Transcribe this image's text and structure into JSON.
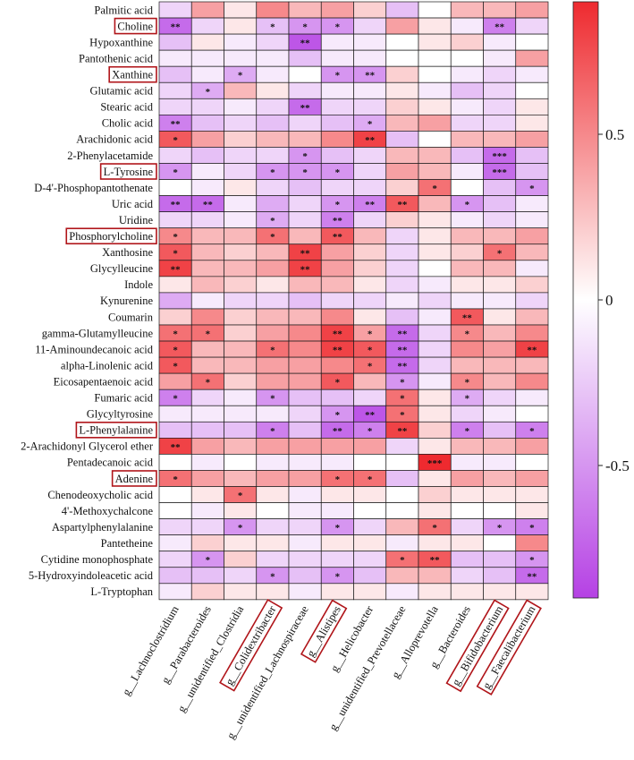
{
  "colors": {
    "negative": "#b541e4",
    "neutral": "#ffffff",
    "positive": "#ee2a2f",
    "highlight_box": "#b0151a"
  },
  "chart_data": {
    "type": "heatmap",
    "title": "",
    "rows": [
      "Palmitic acid",
      "Choline",
      "Hypoxanthine",
      "Pantothenic acid",
      "Xanthine",
      "Glutamic acid",
      "Stearic acid",
      "Cholic acid",
      "Arachidonic acid",
      "2-Phenylacetamide",
      "L-Tyrosine",
      "D-4'-Phosphopantothenate",
      "Uric acid",
      "Uridine",
      "Phosphorylcholine",
      "Xanthosine",
      "Glycylleucine",
      "Indole",
      "Kynurenine",
      "Coumarin",
      "gamma-Glutamylleucine",
      "11-Aminoundecanoic acid",
      "alpha-Linolenic acid",
      "Eicosapentaenoic acid",
      "Fumaric acid",
      "Glycyltyrosine",
      "L-Phenylalanine",
      "2-Arachidonyl Glycerol ether",
      "Pentadecanoic acid",
      "Adenine",
      "Chenodeoxycholic acid",
      "4'-Methoxychalcone",
      "Aspartylphenylalanine",
      "Pantetheine",
      "Cytidine monophosphate",
      "5-Hydroxyindoleacetic acid",
      "L-Tryptophan"
    ],
    "columns": [
      "g__Lachnoclostridium",
      "g__Parabacteroides",
      "g__unidentified_Clostridia",
      "g__Colidextribacter",
      "g__unidentified_Lachnospiraceae",
      "g__Alistipes",
      "g__Helicobacter",
      "g__unidentified_Prevotellaceae",
      "g__Alloprevotella",
      "g__Bacteroides",
      "g__Bifidobacterium",
      "g__Faecalibacterium"
    ],
    "highlighted_rows": [
      "Choline",
      "Xanthine",
      "L-Tyrosine",
      "Phosphorylcholine",
      "L-Phenylalanine",
      "Adenine"
    ],
    "highlighted_columns": [
      "g__Colidextribacter",
      "g__Alistipes",
      "g__Bifidobacterium",
      "g__Faecalibacterium"
    ],
    "values": [
      [
        -0.2,
        0.4,
        0.1,
        0.5,
        0.3,
        0.4,
        0.2,
        -0.3,
        0.0,
        0.3,
        0.3,
        0.4
      ],
      [
        -0.7,
        -0.2,
        0.1,
        -0.3,
        -0.5,
        -0.5,
        -0.2,
        0.4,
        0.1,
        -0.1,
        -0.6,
        -0.2
      ],
      [
        -0.3,
        0.1,
        -0.1,
        -0.2,
        -0.8,
        -0.1,
        -0.1,
        0.0,
        0.1,
        0.2,
        -0.1,
        0.0
      ],
      [
        -0.1,
        -0.1,
        -0.1,
        -0.1,
        -0.3,
        -0.1,
        -0.1,
        0.0,
        0.0,
        0.0,
        -0.1,
        0.4
      ],
      [
        -0.3,
        -0.1,
        -0.4,
        -0.1,
        0.0,
        -0.5,
        -0.5,
        0.2,
        0.0,
        -0.1,
        -0.2,
        -0.1
      ],
      [
        -0.2,
        -0.4,
        0.3,
        0.1,
        -0.2,
        -0.1,
        -0.1,
        0.1,
        -0.1,
        -0.3,
        -0.2,
        0.0
      ],
      [
        -0.2,
        -0.2,
        -0.1,
        -0.2,
        -0.7,
        -0.2,
        -0.2,
        0.2,
        0.1,
        -0.1,
        -0.2,
        0.1
      ],
      [
        -0.6,
        -0.3,
        -0.2,
        -0.3,
        -0.2,
        -0.3,
        -0.4,
        0.3,
        0.4,
        -0.2,
        -0.2,
        0.1
      ],
      [
        0.7,
        0.4,
        0.2,
        0.3,
        0.3,
        0.5,
        0.8,
        -0.3,
        0.0,
        0.3,
        0.3,
        0.4
      ],
      [
        -0.2,
        -0.3,
        -0.2,
        -0.2,
        -0.5,
        -0.3,
        -0.2,
        0.3,
        0.3,
        -0.3,
        -0.7,
        -0.3
      ],
      [
        -0.5,
        -0.1,
        -0.2,
        -0.5,
        -0.5,
        -0.5,
        -0.2,
        0.4,
        0.3,
        -0.1,
        -0.7,
        -0.3
      ],
      [
        0.0,
        -0.1,
        0.1,
        -0.2,
        -0.3,
        -0.2,
        -0.2,
        0.2,
        0.6,
        0.0,
        -0.3,
        -0.5
      ],
      [
        -0.7,
        -0.7,
        -0.1,
        -0.4,
        -0.2,
        -0.5,
        -0.6,
        0.7,
        0.3,
        -0.5,
        -0.3,
        -0.1
      ],
      [
        -0.2,
        -0.2,
        -0.1,
        -0.4,
        -0.2,
        -0.6,
        -0.2,
        0.2,
        0.1,
        -0.1,
        -0.2,
        -0.1
      ],
      [
        0.5,
        0.3,
        0.3,
        0.6,
        0.3,
        0.7,
        0.3,
        -0.2,
        0.1,
        0.3,
        0.3,
        0.4
      ],
      [
        0.7,
        0.3,
        0.2,
        0.3,
        0.8,
        0.4,
        0.2,
        -0.2,
        0.1,
        0.2,
        0.6,
        0.3
      ],
      [
        0.8,
        0.3,
        0.3,
        0.4,
        0.8,
        0.4,
        0.2,
        -0.2,
        0.0,
        0.3,
        0.3,
        -0.1
      ],
      [
        0.1,
        0.3,
        0.2,
        0.1,
        0.3,
        0.3,
        0.1,
        -0.2,
        -0.1,
        0.1,
        0.1,
        0.2
      ],
      [
        -0.4,
        -0.1,
        -0.2,
        -0.2,
        -0.3,
        -0.2,
        -0.2,
        -0.1,
        -0.2,
        -0.1,
        -0.1,
        -0.2
      ],
      [
        0.2,
        0.5,
        0.2,
        0.3,
        0.3,
        0.5,
        0.1,
        -0.3,
        -0.1,
        0.7,
        0.1,
        0.3
      ],
      [
        0.6,
        0.6,
        0.2,
        0.4,
        0.5,
        0.8,
        0.4,
        -0.7,
        -0.2,
        0.5,
        0.3,
        0.5
      ],
      [
        0.7,
        0.3,
        0.3,
        0.6,
        0.5,
        0.8,
        0.7,
        -0.7,
        -0.2,
        0.5,
        0.4,
        0.8
      ],
      [
        0.7,
        0.3,
        0.3,
        0.4,
        0.4,
        0.5,
        0.6,
        -0.7,
        -0.2,
        0.3,
        0.3,
        0.3
      ],
      [
        0.4,
        0.6,
        0.2,
        0.4,
        0.4,
        0.7,
        0.3,
        -0.5,
        -0.1,
        0.5,
        0.3,
        0.5
      ],
      [
        -0.6,
        -0.2,
        -0.1,
        -0.5,
        -0.3,
        -0.3,
        -0.2,
        0.6,
        0.1,
        -0.4,
        -0.2,
        -0.1
      ],
      [
        -0.1,
        -0.1,
        -0.1,
        -0.1,
        -0.2,
        -0.5,
        -0.8,
        0.6,
        0.1,
        -0.2,
        -0.1,
        0.0
      ],
      [
        -0.3,
        -0.3,
        -0.3,
        -0.6,
        -0.3,
        -0.7,
        -0.6,
        0.8,
        0.2,
        -0.6,
        -0.3,
        -0.6
      ],
      [
        0.8,
        0.4,
        0.3,
        0.4,
        0.4,
        0.4,
        0.4,
        -0.2,
        0.1,
        0.3,
        0.3,
        0.4
      ],
      [
        0.0,
        -0.1,
        0.0,
        -0.1,
        -0.1,
        -0.1,
        0.0,
        0.0,
        0.95,
        -0.1,
        -0.1,
        0.0
      ],
      [
        0.6,
        0.4,
        0.3,
        0.4,
        0.4,
        0.6,
        0.6,
        -0.3,
        0.1,
        0.4,
        0.3,
        0.4
      ],
      [
        0.0,
        0.1,
        0.6,
        0.1,
        -0.1,
        0.1,
        0.1,
        0.0,
        0.2,
        0.1,
        0.1,
        0.1
      ],
      [
        0.0,
        -0.1,
        0.1,
        0.0,
        -0.1,
        -0.1,
        0.0,
        0.0,
        0.1,
        0.0,
        0.0,
        0.1
      ],
      [
        -0.2,
        -0.2,
        -0.5,
        -0.2,
        -0.2,
        -0.5,
        -0.2,
        0.3,
        0.6,
        -0.2,
        -0.5,
        -0.6
      ],
      [
        -0.1,
        0.2,
        0.1,
        0.1,
        -0.1,
        0.1,
        0.1,
        -0.1,
        0.1,
        0.1,
        0.0,
        0.5
      ],
      [
        -0.2,
        -0.5,
        0.2,
        -0.2,
        -0.2,
        -0.2,
        -0.2,
        0.6,
        0.7,
        -0.3,
        -0.3,
        -0.5
      ],
      [
        -0.3,
        -0.3,
        -0.2,
        -0.5,
        -0.3,
        -0.5,
        -0.3,
        0.3,
        0.3,
        -0.2,
        -0.3,
        -0.7
      ],
      [
        -0.1,
        0.2,
        0.1,
        0.1,
        -0.1,
        0.1,
        0.1,
        -0.1,
        0.1,
        0.1,
        0.1,
        0.1
      ]
    ],
    "significance": [
      [
        "",
        "",
        "",
        "",
        "",
        "",
        "",
        "",
        "",
        "",
        "",
        ""
      ],
      [
        "**",
        "",
        "",
        "*",
        "*",
        "*",
        "",
        "",
        "",
        "",
        "**",
        ""
      ],
      [
        "",
        "",
        "",
        "",
        "**",
        "",
        "",
        "",
        "",
        "",
        "",
        ""
      ],
      [
        "",
        "",
        "",
        "",
        "",
        "",
        "",
        "",
        "",
        "",
        "",
        ""
      ],
      [
        "",
        "",
        "*",
        "",
        "",
        "*",
        "**",
        "",
        "",
        "",
        "",
        ""
      ],
      [
        "",
        "*",
        "",
        "",
        "",
        "",
        "",
        "",
        "",
        "",
        "",
        ""
      ],
      [
        "",
        "",
        "",
        "",
        "**",
        "",
        "",
        "",
        "",
        "",
        "",
        ""
      ],
      [
        "**",
        "",
        "",
        "",
        "",
        "",
        "*",
        "",
        "",
        "",
        "",
        ""
      ],
      [
        "*",
        "",
        "",
        "",
        "",
        "",
        "**",
        "",
        "",
        "",
        "",
        ""
      ],
      [
        "",
        "",
        "",
        "",
        "*",
        "",
        "",
        "",
        "",
        "",
        "***",
        ""
      ],
      [
        "*",
        "",
        "",
        "*",
        "*",
        "*",
        "",
        "",
        "",
        "",
        "***",
        ""
      ],
      [
        "",
        "",
        "",
        "",
        "",
        "",
        "",
        "",
        "*",
        "",
        "",
        "*"
      ],
      [
        "**",
        "**",
        "",
        "",
        "",
        "*",
        "**",
        "**",
        "",
        "*",
        "",
        ""
      ],
      [
        "",
        "",
        "",
        "*",
        "",
        "**",
        "",
        "",
        "",
        "",
        "",
        ""
      ],
      [
        "*",
        "",
        "",
        "*",
        "",
        "**",
        "",
        "",
        "",
        "",
        "",
        ""
      ],
      [
        "*",
        "",
        "",
        "",
        "**",
        "",
        "",
        "",
        "",
        "",
        "*",
        ""
      ],
      [
        "**",
        "",
        "",
        "",
        "**",
        "",
        "",
        "",
        "",
        "",
        "",
        ""
      ],
      [
        "",
        "",
        "",
        "",
        "",
        "",
        "",
        "",
        "",
        "",
        "",
        ""
      ],
      [
        "",
        "",
        "",
        "",
        "",
        "",
        "",
        "",
        "",
        "",
        "",
        ""
      ],
      [
        "",
        "",
        "",
        "",
        "",
        "",
        "",
        "",
        "",
        "**",
        "",
        ""
      ],
      [
        "*",
        "*",
        "",
        "",
        "",
        "**",
        "*",
        "**",
        "",
        "*",
        "",
        ""
      ],
      [
        "*",
        "",
        "",
        "*",
        "",
        "**",
        "*",
        "**",
        "",
        "",
        "",
        "**"
      ],
      [
        "*",
        "",
        "",
        "",
        "",
        "",
        "*",
        "**",
        "",
        "",
        "",
        ""
      ],
      [
        "",
        "*",
        "",
        "",
        "",
        "*",
        "",
        "*",
        "",
        "*",
        "",
        ""
      ],
      [
        "*",
        "",
        "",
        "*",
        "",
        "",
        "",
        "*",
        "",
        "*",
        "",
        ""
      ],
      [
        "",
        "",
        "",
        "",
        "",
        "*",
        "**",
        "*",
        "",
        "",
        "",
        ""
      ],
      [
        "",
        "",
        "",
        "*",
        "",
        "**",
        "*",
        "**",
        "",
        "*",
        "",
        "*"
      ],
      [
        "**",
        "",
        "",
        "",
        "",
        "",
        "",
        "",
        "",
        "",
        "",
        ""
      ],
      [
        "",
        "",
        "",
        "",
        "",
        "",
        "",
        "",
        "***",
        "",
        "",
        ""
      ],
      [
        "*",
        "",
        "",
        "",
        "",
        "*",
        "*",
        "",
        "",
        "",
        "",
        ""
      ],
      [
        "",
        "",
        "*",
        "",
        "",
        "",
        "",
        "",
        "",
        "",
        "",
        ""
      ],
      [
        "",
        "",
        "",
        "",
        "",
        "",
        "",
        "",
        "",
        "",
        "",
        ""
      ],
      [
        "",
        "",
        "*",
        "",
        "",
        "*",
        "",
        "",
        "*",
        "",
        "*",
        "*"
      ],
      [
        "",
        "",
        "",
        "",
        "",
        "",
        "",
        "",
        "",
        "",
        "",
        ""
      ],
      [
        "",
        "*",
        "",
        "",
        "",
        "",
        "",
        "*",
        "**",
        "",
        "",
        "*"
      ],
      [
        "",
        "",
        "",
        "*",
        "",
        "*",
        "",
        "",
        "",
        "",
        "",
        "**"
      ],
      [
        "",
        "",
        "",
        "",
        "",
        "",
        "",
        "",
        "",
        "",
        "",
        ""
      ]
    ],
    "colorbar": {
      "ticks": [
        0.5,
        0,
        -0.5
      ],
      "tick_labels": [
        "0.5",
        "0",
        "-0.5"
      ],
      "range": [
        -0.9,
        0.9
      ]
    }
  }
}
